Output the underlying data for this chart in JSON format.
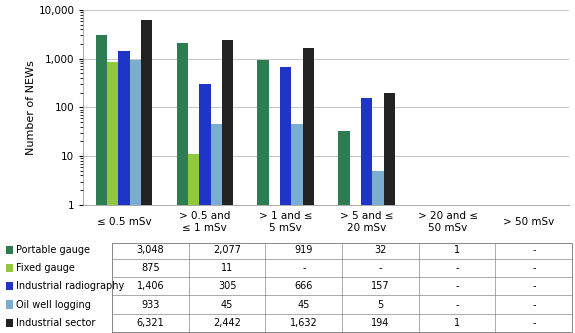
{
  "categories": [
    "≤ 0.5 mSv",
    "> 0.5 and\n≤ 1 mSv",
    "> 1 and ≤\n5 mSv",
    "> 5 and ≤\n20 mSv",
    "> 20 and ≤\n50 mSv",
    "> 50 mSv"
  ],
  "series_order": [
    "Portable gauge",
    "Fixed gauge",
    "Industrial radiography",
    "Oil well logging",
    "Industrial sector"
  ],
  "series": {
    "Portable gauge": [
      3048,
      2077,
      919,
      32,
      1,
      null
    ],
    "Fixed gauge": [
      875,
      11,
      null,
      null,
      null,
      null
    ],
    "Industrial radiography": [
      1406,
      305,
      666,
      157,
      null,
      null
    ],
    "Oil well logging": [
      933,
      45,
      45,
      5,
      null,
      null
    ],
    "Industrial sector": [
      6321,
      2442,
      1632,
      194,
      1,
      null
    ]
  },
  "colors": {
    "Portable gauge": "#2e7d52",
    "Fixed gauge": "#92c83e",
    "Industrial radiography": "#1f35c7",
    "Oil well logging": "#7aadcf",
    "Industrial sector": "#222222"
  },
  "table_data": {
    "Portable gauge": [
      "3,048",
      "2,077",
      "919",
      "32",
      "1",
      "-"
    ],
    "Fixed gauge": [
      "875",
      "11",
      "-",
      "-",
      "-",
      "-"
    ],
    "Industrial radiography": [
      "1,406",
      "305",
      "666",
      "157",
      "-",
      "-"
    ],
    "Oil well logging": [
      "933",
      "45",
      "45",
      "5",
      "-",
      "-"
    ],
    "Industrial sector": [
      "6,321",
      "2,442",
      "1,632",
      "194",
      "1",
      "-"
    ]
  },
  "ylabel": "Number of NEWs",
  "background_color": "#ffffff",
  "grid_color": "#bbbbbb",
  "table_row_order": [
    "Portable gauge",
    "Fixed gauge",
    "Industrial radiography",
    "Oil well logging",
    "Industrial sector"
  ]
}
